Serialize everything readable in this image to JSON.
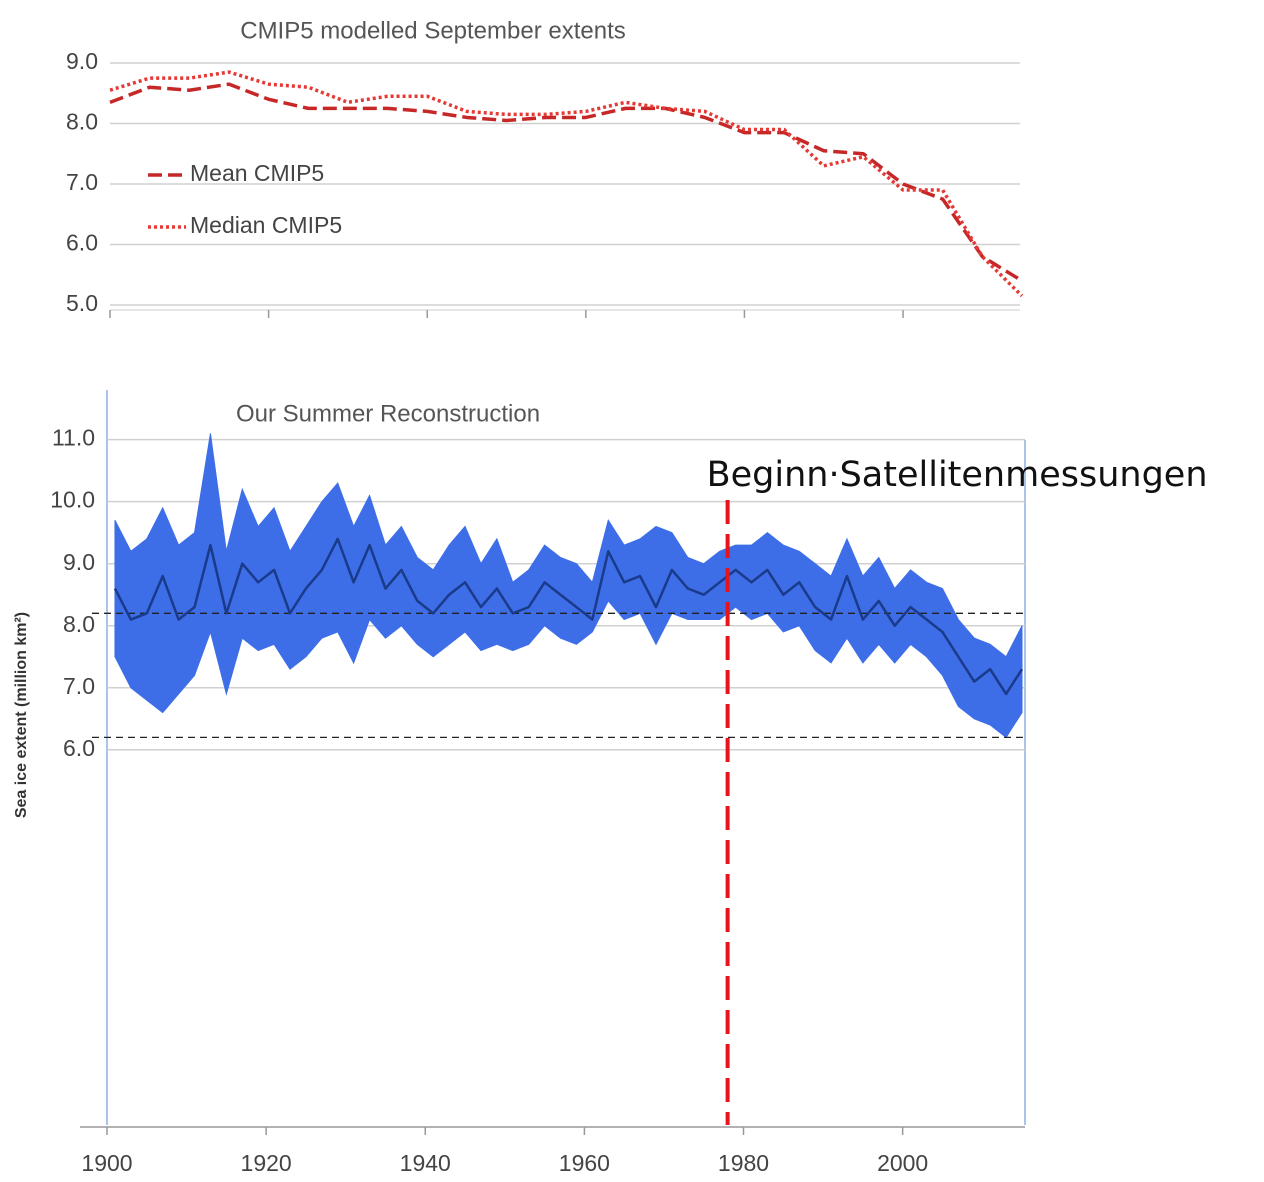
{
  "chart_data": [
    {
      "type": "line",
      "title": "CMIP5 modelled September extents",
      "x": [
        1900,
        1905,
        1910,
        1915,
        1920,
        1925,
        1930,
        1935,
        1940,
        1945,
        1950,
        1955,
        1960,
        1965,
        1970,
        1975,
        1980,
        1985,
        1990,
        1995,
        2000,
        2005,
        2010,
        2015
      ],
      "series": [
        {
          "name": "Mean CMIP5",
          "color": "#c62828",
          "dash": "dashed",
          "values": [
            8.35,
            8.6,
            8.55,
            8.65,
            8.4,
            8.25,
            8.25,
            8.25,
            8.2,
            8.1,
            8.05,
            8.1,
            8.1,
            8.25,
            8.25,
            8.1,
            7.85,
            7.85,
            7.55,
            7.5,
            7.0,
            6.75,
            5.8,
            5.4
          ]
        },
        {
          "name": "Median CMIP5",
          "color": "#e53935",
          "dash": "dotted",
          "values": [
            8.55,
            8.75,
            8.75,
            8.85,
            8.65,
            8.6,
            8.35,
            8.45,
            8.45,
            8.2,
            8.15,
            8.15,
            8.2,
            8.35,
            8.25,
            8.2,
            7.9,
            7.9,
            7.3,
            7.45,
            6.9,
            6.9,
            5.8,
            5.15
          ]
        }
      ],
      "xlim": [
        1900,
        2015
      ],
      "ylim": [
        5,
        9
      ],
      "yticks": [
        {
          "value": 5,
          "label": "5.0"
        },
        {
          "value": 6,
          "label": "6.0"
        },
        {
          "value": 7,
          "label": "7.0"
        },
        {
          "value": 8,
          "label": "8.0"
        },
        {
          "value": 9,
          "label": "9.0"
        }
      ],
      "grid": true,
      "legend": "upper left"
    },
    {
      "type": "line",
      "title": "Our Summer Reconstruction",
      "ylabel": "Sea ice extent (million km²)",
      "x": [
        1901,
        1903,
        1905,
        1907,
        1909,
        1911,
        1913,
        1915,
        1917,
        1919,
        1921,
        1923,
        1925,
        1927,
        1929,
        1931,
        1933,
        1935,
        1937,
        1939,
        1941,
        1943,
        1945,
        1947,
        1949,
        1951,
        1953,
        1955,
        1957,
        1959,
        1961,
        1963,
        1965,
        1967,
        1969,
        1971,
        1973,
        1975,
        1977,
        1979,
        1981,
        1983,
        1985,
        1987,
        1989,
        1991,
        1993,
        1995,
        1997,
        1999,
        2001,
        2003,
        2005,
        2007,
        2009,
        2011,
        2013,
        2015
      ],
      "series": [
        {
          "color": "#1a3a8a",
          "values": [
            8.6,
            8.1,
            8.2,
            8.8,
            8.1,
            8.3,
            9.3,
            8.2,
            9.0,
            8.7,
            8.9,
            8.2,
            8.6,
            8.9,
            9.4,
            8.7,
            9.3,
            8.6,
            8.9,
            8.4,
            8.2,
            8.5,
            8.7,
            8.3,
            8.6,
            8.2,
            8.3,
            8.7,
            8.5,
            8.3,
            8.1,
            9.2,
            8.7,
            8.8,
            8.3,
            8.9,
            8.6,
            8.5,
            8.7,
            8.9,
            8.7,
            8.9,
            8.5,
            8.7,
            8.3,
            8.1,
            8.8,
            8.1,
            8.4,
            8.0,
            8.3,
            8.1,
            7.9,
            7.5,
            7.1,
            7.3,
            6.9,
            7.3
          ]
        }
      ],
      "band": {
        "color": "#3d6ee8",
        "lower": [
          7.5,
          7.0,
          6.8,
          6.6,
          6.9,
          7.2,
          7.9,
          6.9,
          7.8,
          7.6,
          7.7,
          7.3,
          7.5,
          7.8,
          7.9,
          7.4,
          8.1,
          7.8,
          8.0,
          7.7,
          7.5,
          7.7,
          7.9,
          7.6,
          7.7,
          7.6,
          7.7,
          8.0,
          7.8,
          7.7,
          7.9,
          8.4,
          8.1,
          8.2,
          7.7,
          8.2,
          8.1,
          8.1,
          8.1,
          8.3,
          8.1,
          8.2,
          7.9,
          8.0,
          7.6,
          7.4,
          7.8,
          7.4,
          7.7,
          7.4,
          7.7,
          7.5,
          7.2,
          6.7,
          6.5,
          6.4,
          6.2,
          6.6
        ],
        "upper": [
          9.7,
          9.2,
          9.4,
          9.9,
          9.3,
          9.5,
          11.1,
          9.2,
          10.2,
          9.6,
          9.9,
          9.2,
          9.6,
          10.0,
          10.3,
          9.6,
          10.1,
          9.3,
          9.6,
          9.1,
          8.9,
          9.3,
          9.6,
          9.0,
          9.4,
          8.7,
          8.9,
          9.3,
          9.1,
          9.0,
          8.7,
          9.7,
          9.3,
          9.4,
          9.6,
          9.5,
          9.1,
          9.0,
          9.2,
          9.3,
          9.3,
          9.5,
          9.3,
          9.2,
          9.0,
          8.8,
          9.4,
          8.8,
          9.1,
          8.6,
          8.9,
          8.7,
          8.6,
          8.1,
          7.8,
          7.7,
          7.5,
          8.0
        ]
      },
      "hlines": [
        8.2,
        6.2
      ],
      "vline": {
        "x": 1978,
        "color": "#e8141c",
        "label": "Beginn·Satellitenmessungen"
      },
      "xlim": [
        1900,
        2015
      ],
      "ylim": [
        0,
        11.8
      ],
      "xticks": [
        1900,
        1920,
        1940,
        1960,
        1980,
        2000
      ],
      "yticks": [
        {
          "value": 6,
          "label": "6.0"
        },
        {
          "value": 7,
          "label": "7.0"
        },
        {
          "value": 8,
          "label": "8.0"
        },
        {
          "value": 9,
          "label": "9.0"
        },
        {
          "value": 10,
          "label": "10.0"
        },
        {
          "value": 11,
          "label": "11.0"
        }
      ],
      "grid": true
    }
  ]
}
